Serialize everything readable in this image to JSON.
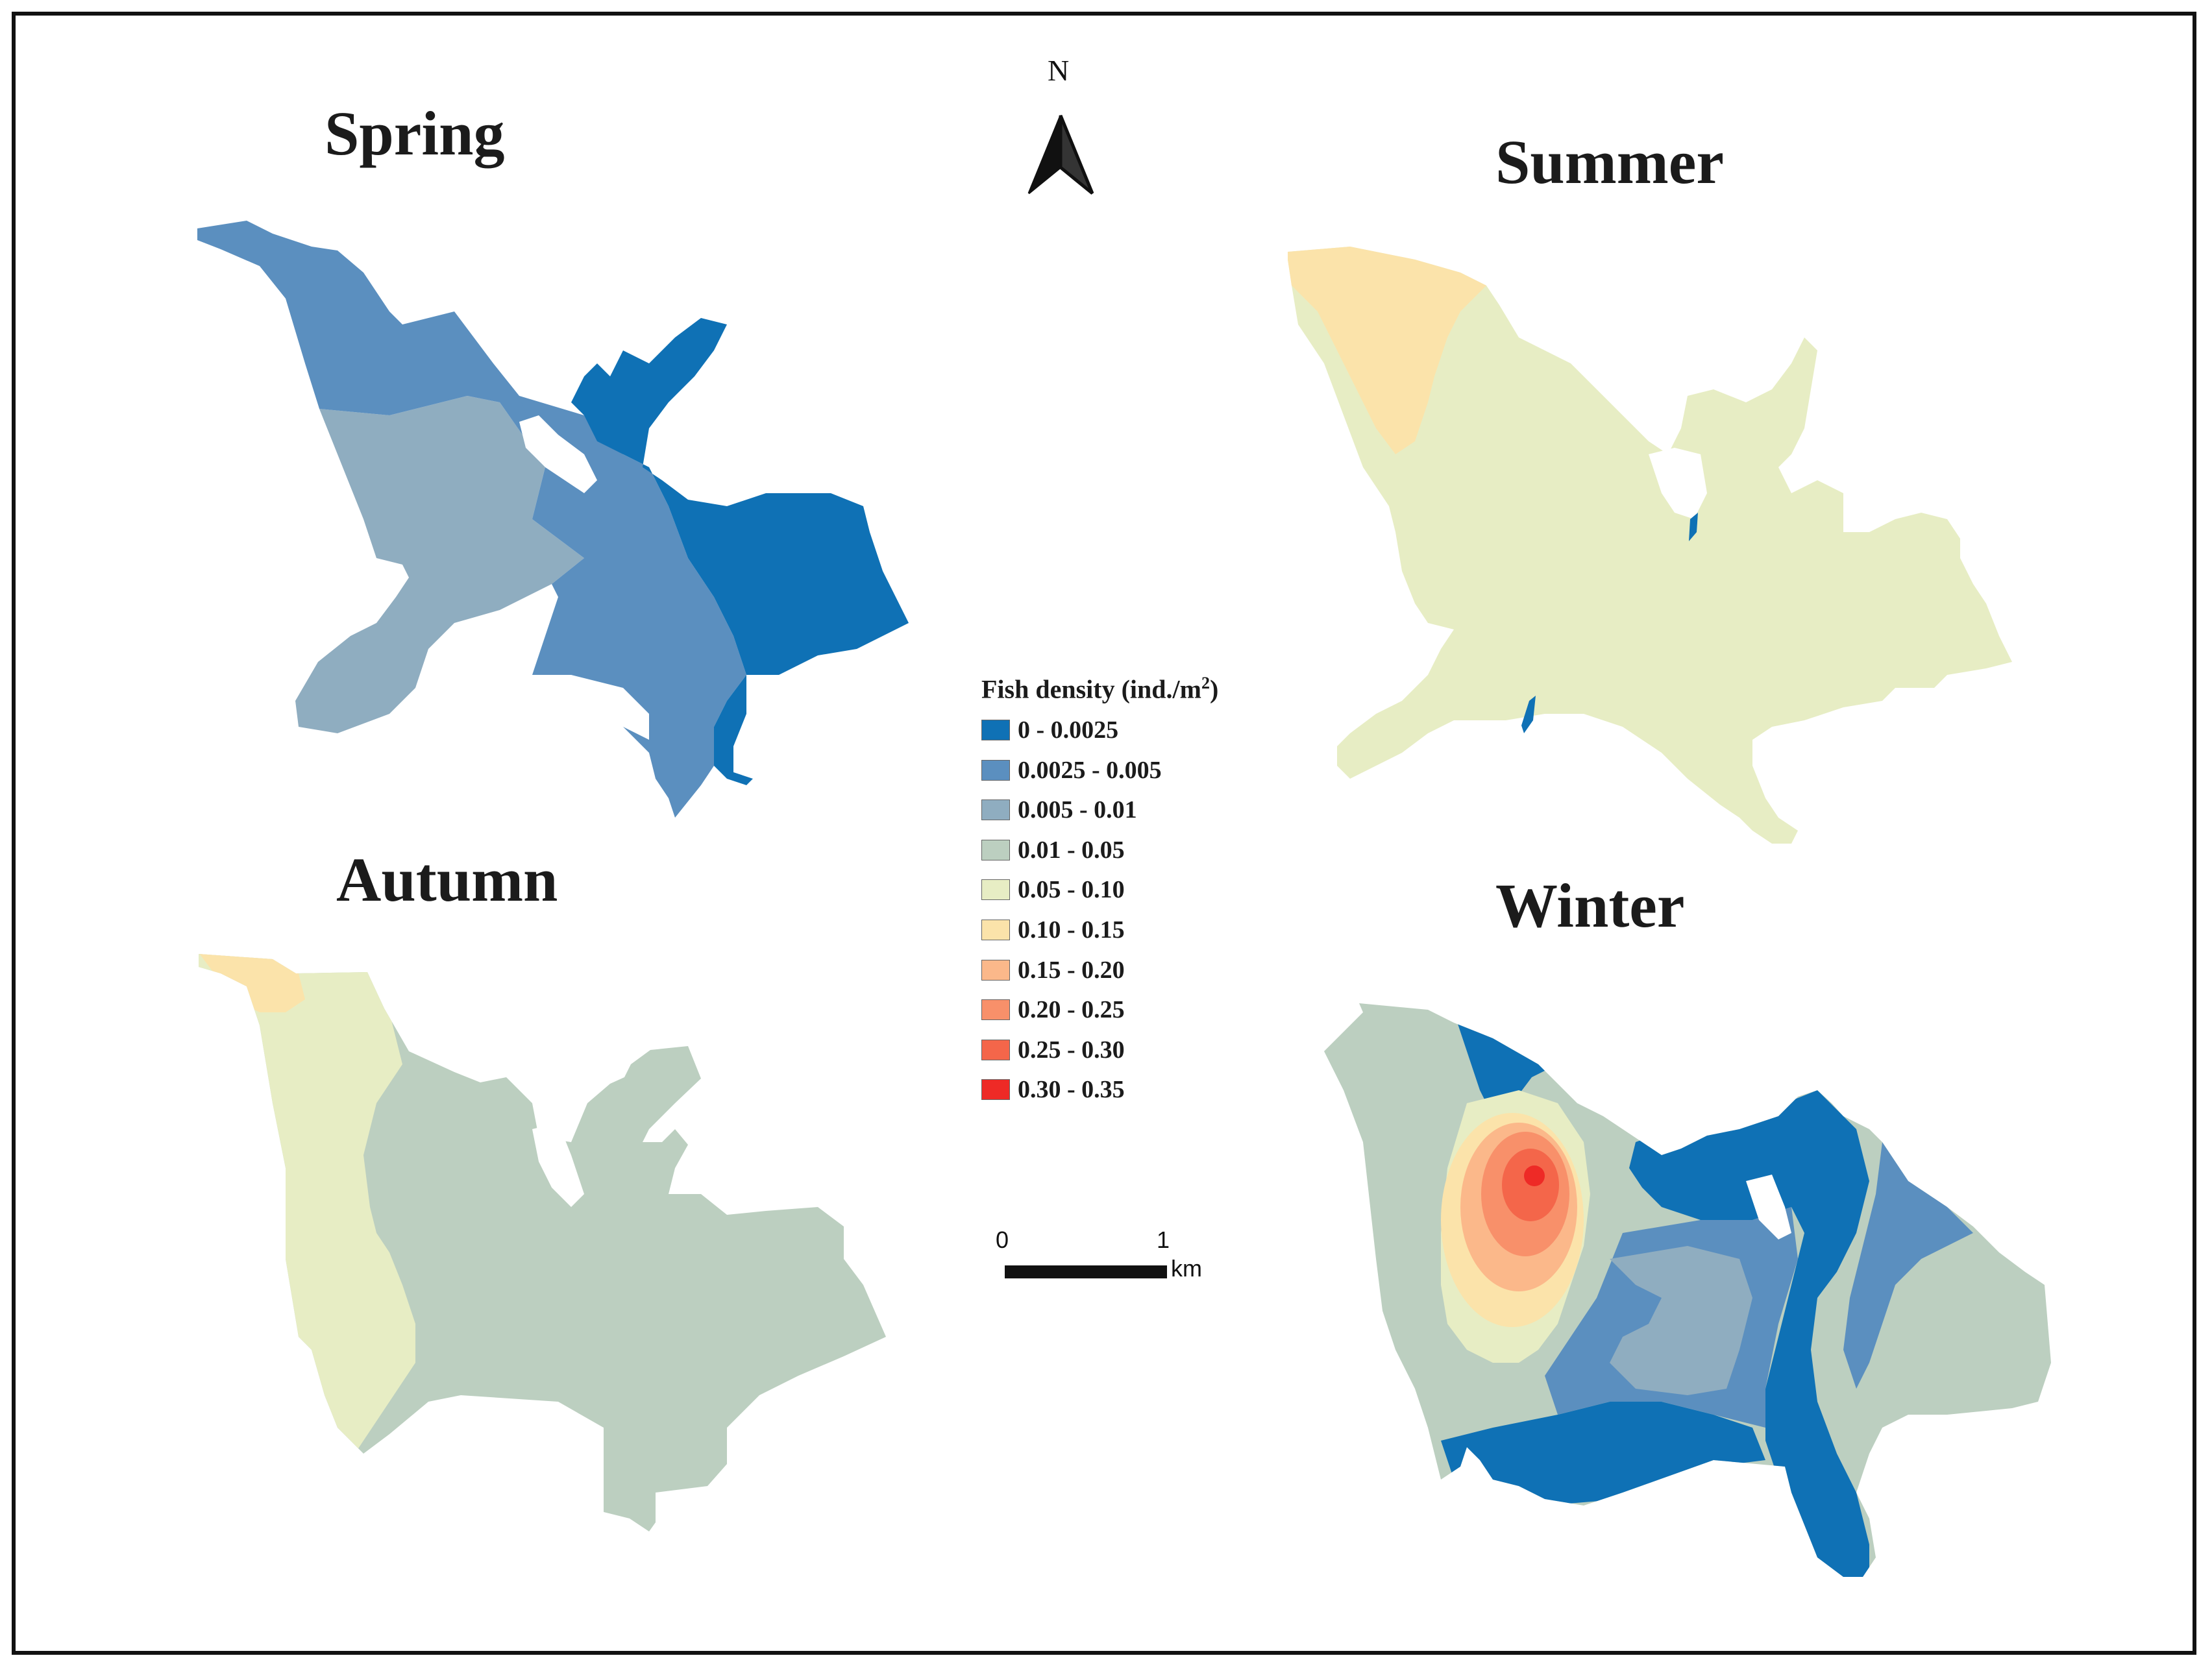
{
  "figure": {
    "panels": [
      {
        "title": "Spring"
      },
      {
        "title": "Summer"
      },
      {
        "title": "Autumn"
      },
      {
        "title": "Winter"
      }
    ]
  },
  "north_arrow": {
    "label": "N"
  },
  "legend": {
    "title": "Fish density (ind./m",
    "title_superscript": "2",
    "title_suffix": ")",
    "classes": [
      {
        "label": "0 - 0.0025",
        "color": "#0f71b5"
      },
      {
        "label": "0.0025 - 0.005",
        "color": "#5b8fbf"
      },
      {
        "label": "0.005 - 0.01",
        "color": "#8fadc0"
      },
      {
        "label": "0.01 - 0.05",
        "color": "#bccfc0"
      },
      {
        "label": "0.05 - 0.10",
        "color": "#e7edc4"
      },
      {
        "label": "0.10 - 0.15",
        "color": "#fbe3aa"
      },
      {
        "label": "0.15 - 0.20",
        "color": "#fbb88a"
      },
      {
        "label": "0.20 - 0.25",
        "color": "#f8906a"
      },
      {
        "label": "0.25 - 0.30",
        "color": "#f4664a"
      },
      {
        "label": "0.30 - 0.35",
        "color": "#ee2a26"
      }
    ]
  },
  "scale_bar": {
    "start_label": "0",
    "end_label": "1",
    "unit": "km"
  }
}
